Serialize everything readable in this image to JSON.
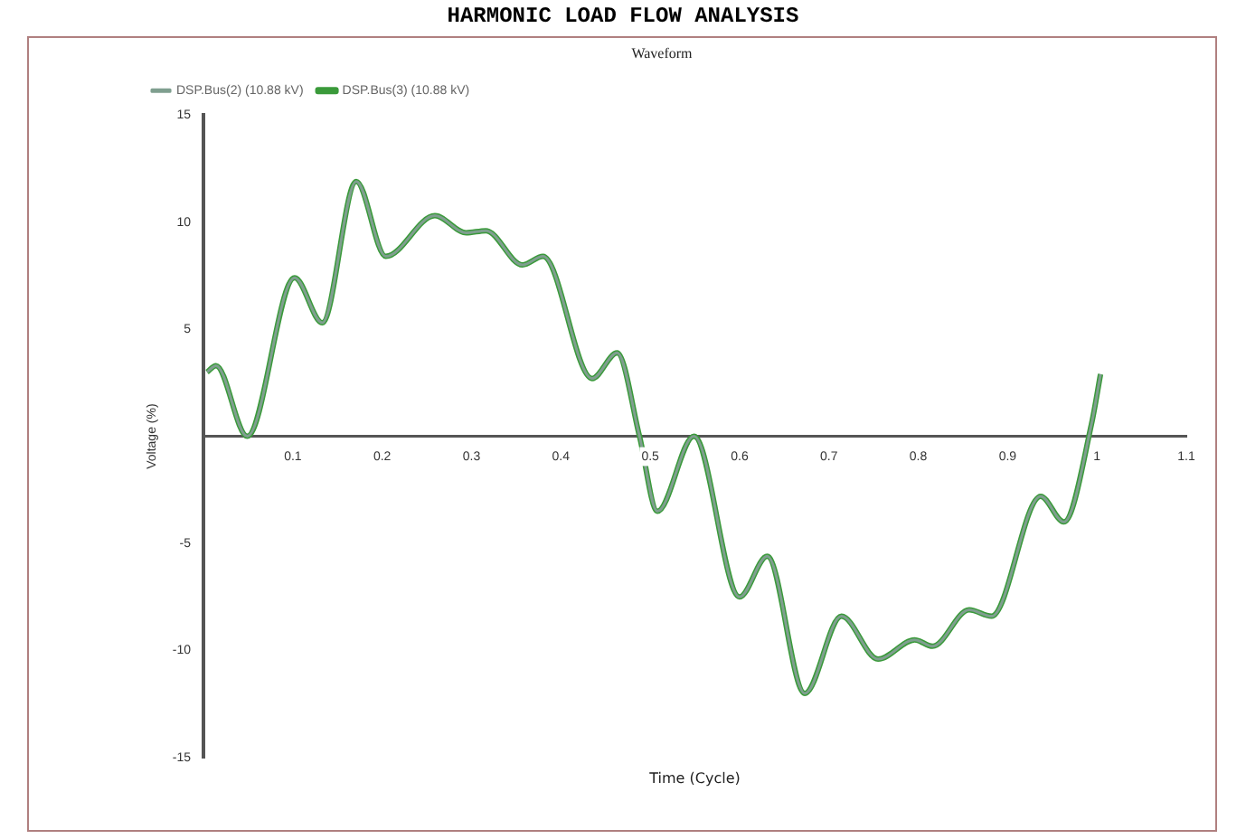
{
  "chart_data": {
    "type": "line",
    "title": "HARMONIC LOAD FLOW ANALYSIS",
    "subtitle": "Waveform",
    "xlabel": "Time (Cycle)",
    "ylabel": "Voltage (%)",
    "x": [
      0.004,
      0.014,
      0.049,
      0.102,
      0.133,
      0.171,
      0.204,
      0.259,
      0.294,
      0.316,
      0.357,
      0.38,
      0.435,
      0.463,
      0.488,
      0.508,
      0.549,
      0.6,
      0.631,
      0.673,
      0.714,
      0.755,
      0.796,
      0.816,
      0.857,
      0.882,
      0.937,
      0.963,
      0.994,
      1.004
    ],
    "series": [
      {
        "name": "DSP.Bus(2) (10.88 kV)",
        "color": "#7f9f8f",
        "values": [
          3.0,
          3.3,
          0.0,
          7.4,
          5.3,
          11.9,
          8.4,
          10.3,
          9.5,
          9.6,
          8.0,
          8.4,
          2.7,
          3.9,
          0.0,
          -3.5,
          0.0,
          -7.5,
          -5.6,
          -12.0,
          -8.4,
          -10.4,
          -9.5,
          -9.8,
          -8.1,
          -8.4,
          -2.8,
          -4.0,
          0.6,
          2.9
        ]
      },
      {
        "name": "DSP.Bus(3) (10.88 kV)",
        "color": "#3a9a3a",
        "values": [
          3.0,
          3.3,
          0.0,
          7.4,
          5.3,
          11.9,
          8.4,
          10.3,
          9.5,
          9.6,
          8.0,
          8.4,
          2.7,
          3.9,
          0.0,
          -3.5,
          0.0,
          -7.5,
          -5.6,
          -12.0,
          -8.4,
          -10.4,
          -9.5,
          -9.8,
          -8.1,
          -8.4,
          -2.8,
          -4.0,
          0.6,
          2.9
        ]
      }
    ],
    "xlim": [
      0,
      1.1
    ],
    "xticks": [
      0.1,
      0.2,
      0.3,
      0.4,
      0.5,
      0.6,
      0.7,
      0.8,
      0.9,
      1.0,
      1.1
    ],
    "ylim": [
      -15,
      15
    ],
    "yticks": [
      -15,
      -10,
      -5,
      5,
      10,
      15
    ],
    "grid": false,
    "legend": "top left",
    "marker": "none",
    "line_style": "solid"
  }
}
